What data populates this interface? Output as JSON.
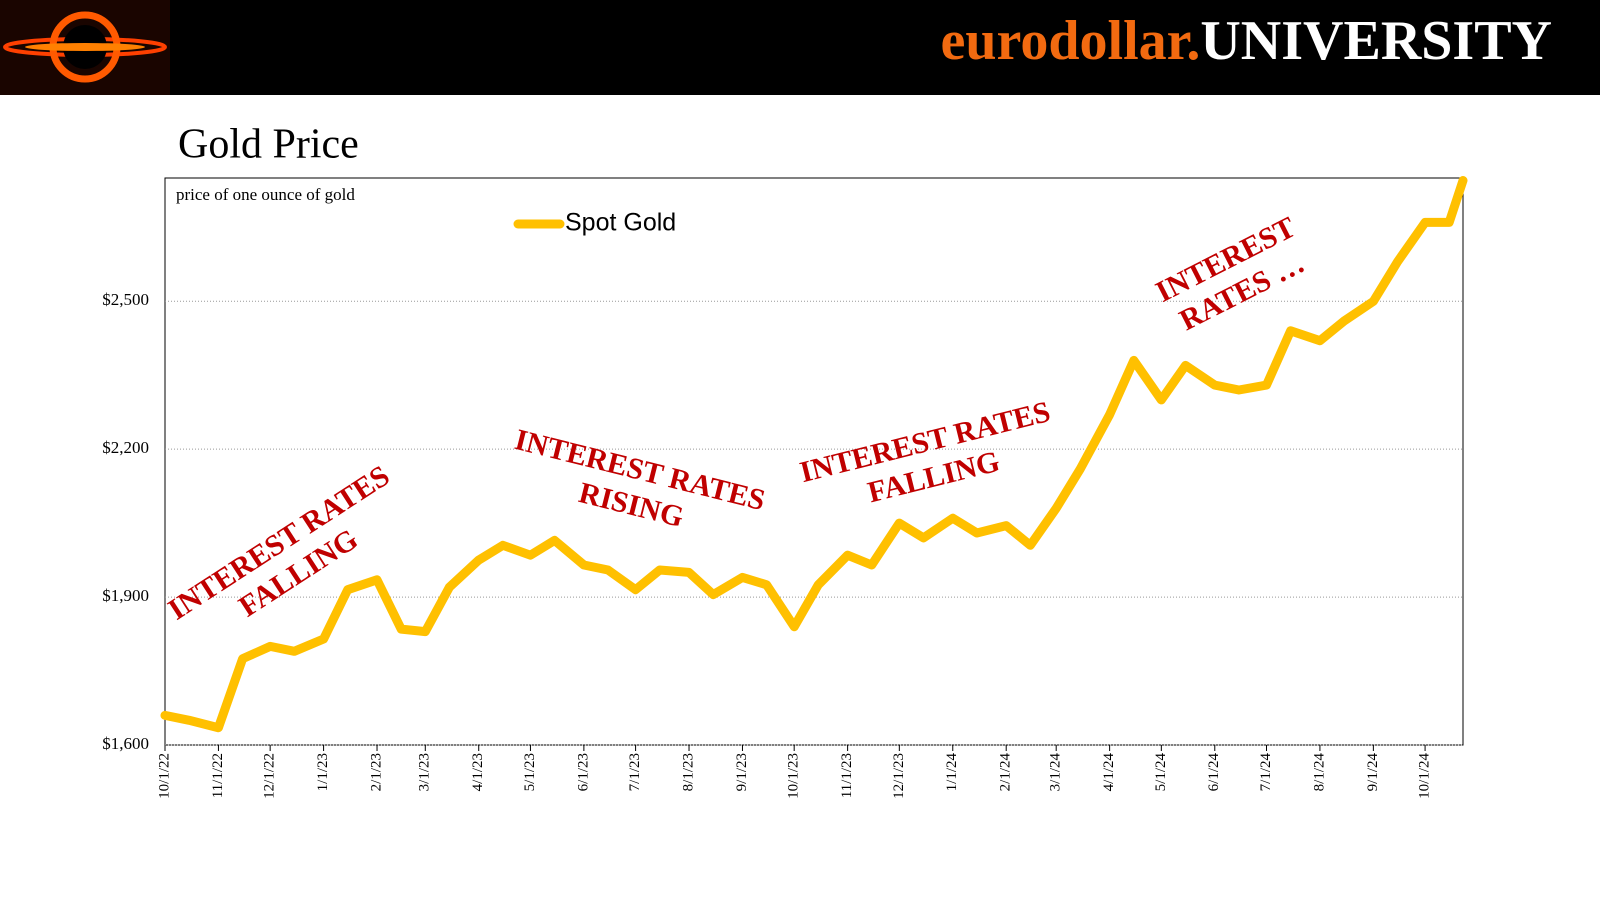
{
  "header": {
    "brand_left": "eurodollar.",
    "brand_right": "UNIVERSITY"
  },
  "chart_data": {
    "type": "line",
    "title": "Gold Price",
    "subtitle": "price of one ounce of gold",
    "x": [
      "10/1/22",
      "10/15/22",
      "11/1/22",
      "11/15/22",
      "12/1/22",
      "12/15/22",
      "1/1/23",
      "1/15/23",
      "2/1/23",
      "2/15/23",
      "3/1/23",
      "3/15/23",
      "4/1/23",
      "4/15/23",
      "5/1/23",
      "5/15/23",
      "6/1/23",
      "6/15/23",
      "7/1/23",
      "7/15/23",
      "8/1/23",
      "8/15/23",
      "9/1/23",
      "9/15/23",
      "10/1/23",
      "10/15/23",
      "11/1/23",
      "11/15/23",
      "12/1/23",
      "12/15/23",
      "1/1/24",
      "1/15/24",
      "2/1/24",
      "2/15/24",
      "3/1/24",
      "3/15/24",
      "4/1/24",
      "4/15/24",
      "5/1/24",
      "5/15/24",
      "6/1/24",
      "6/15/24",
      "7/1/24",
      "7/15/24",
      "8/1/24",
      "8/15/24",
      "9/1/24",
      "9/15/24",
      "10/1/24",
      "10/15/24",
      "10/23/24"
    ],
    "series": [
      {
        "name": "Spot Gold",
        "color": "#ffc000",
        "values": [
          1660,
          1650,
          1635,
          1775,
          1800,
          1790,
          1815,
          1915,
          1935,
          1835,
          1830,
          1920,
          1975,
          2005,
          1985,
          2015,
          1965,
          1955,
          1915,
          1955,
          1950,
          1905,
          1940,
          1925,
          1840,
          1925,
          1985,
          1965,
          2050,
          2020,
          2060,
          2030,
          2045,
          2005,
          2080,
          2160,
          2270,
          2380,
          2300,
          2370,
          2330,
          2320,
          2330,
          2440,
          2420,
          2460,
          2500,
          2580,
          2660,
          2660,
          2745
        ]
      }
    ],
    "xlim": [
      "10/1/22",
      "10/23/24"
    ],
    "xticks": [
      "10/1/22",
      "11/1/22",
      "12/1/22",
      "1/1/23",
      "2/1/23",
      "3/1/23",
      "4/1/23",
      "5/1/23",
      "6/1/23",
      "7/1/23",
      "8/1/23",
      "9/1/23",
      "10/1/23",
      "11/1/23",
      "12/1/23",
      "1/1/24",
      "2/1/24",
      "3/1/24",
      "4/1/24",
      "5/1/24",
      "6/1/24",
      "7/1/24",
      "8/1/24",
      "9/1/24",
      "10/1/24"
    ],
    "ylim": [
      1600,
      2750
    ],
    "yticks": [
      {
        "value": 1600,
        "label": "$1,600"
      },
      {
        "value": 1900,
        "label": "$1,900"
      },
      {
        "value": 2200,
        "label": "$2,200"
      },
      {
        "value": 2500,
        "label": "$2,500"
      }
    ],
    "grid": true,
    "legend": "top",
    "annotations": [
      {
        "lines": [
          "INTEREST RATES",
          "FALLING"
        ],
        "color": "#c00000"
      },
      {
        "lines": [
          "INTEREST RATES",
          "RISING"
        ],
        "color": "#c00000"
      },
      {
        "lines": [
          "INTEREST RATES",
          "FALLING"
        ],
        "color": "#c00000"
      },
      {
        "lines": [
          "INTEREST",
          "RATES …"
        ],
        "color": "#c00000"
      }
    ]
  }
}
